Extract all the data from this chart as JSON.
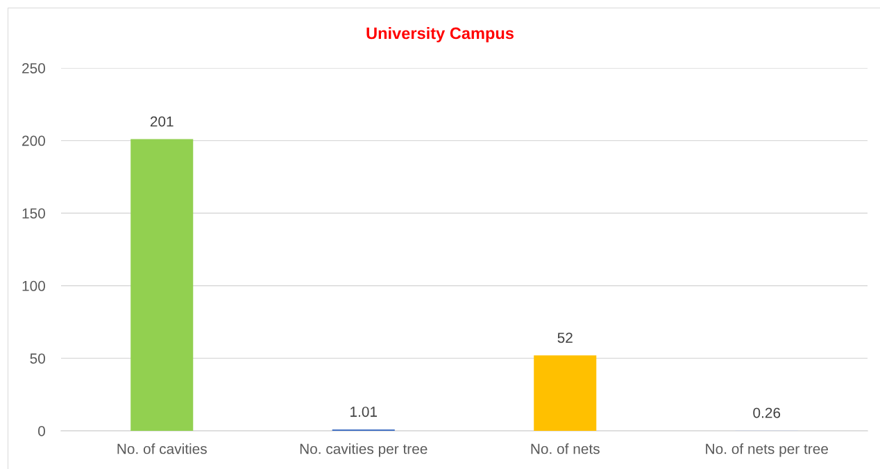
{
  "chart_data": {
    "type": "bar",
    "title": "University Campus",
    "categories": [
      "No. of cavities",
      "No. cavities per tree",
      "No. of nets",
      "No. of nets per tree"
    ],
    "values": [
      201,
      1.01,
      52,
      0.26
    ],
    "colors": [
      "#92d050",
      "#4472c4",
      "#ffc000",
      "#c5cfe6"
    ],
    "ylim": [
      0,
      250
    ],
    "yticks": [
      0,
      50,
      100,
      150,
      200,
      250
    ],
    "grid": "y",
    "data_labels": true,
    "legend": false
  }
}
